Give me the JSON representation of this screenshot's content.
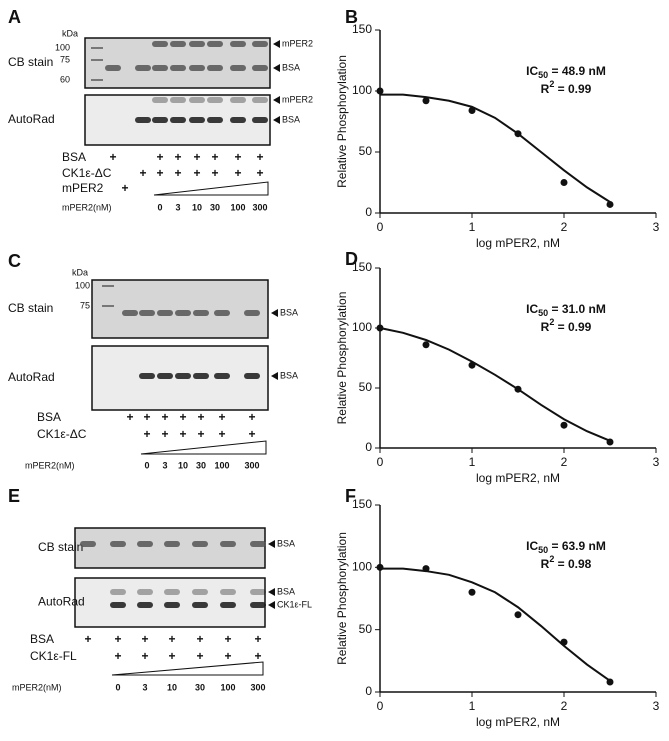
{
  "gels": [
    {
      "label": "A",
      "kda": "kDa",
      "markers": [
        100,
        75,
        60
      ],
      "blots": [
        {
          "name": "CB stain",
          "bands": [
            "mPER2",
            "BSA"
          ]
        },
        {
          "name": "AutoRad",
          "bands": [
            "mPER2",
            "BSA"
          ]
        }
      ],
      "conditions": [
        {
          "name": "BSA",
          "marks": [
            "+",
            null,
            null,
            "+",
            "+",
            "+",
            "+",
            "+",
            "+"
          ]
        },
        {
          "name": "CK1ε-ΔC",
          "marks": [
            null,
            null,
            "+",
            "+",
            "+",
            "+",
            "+",
            "+",
            "+"
          ]
        },
        {
          "name": "mPER2",
          "marks": [
            null,
            "+",
            null,
            null,
            null,
            null,
            null,
            null,
            null
          ]
        }
      ],
      "conc_label": "mPER2(nM)",
      "conc": [
        null,
        null,
        null,
        0,
        3,
        10,
        30,
        100,
        300
      ]
    },
    {
      "label": "C",
      "kda": "kDa",
      "markers": [
        100,
        75
      ],
      "blots": [
        {
          "name": "CB stain",
          "bands": [
            "BSA"
          ]
        },
        {
          "name": "AutoRad",
          "bands": [
            "BSA"
          ]
        }
      ],
      "conditions": [
        {
          "name": "BSA",
          "marks": [
            "+",
            "+",
            "+",
            "+",
            "+",
            "+",
            "+"
          ]
        },
        {
          "name": "CK1ε-ΔC",
          "marks": [
            null,
            "+",
            "+",
            "+",
            "+",
            "+",
            "+"
          ]
        }
      ],
      "conc_label": "mPER2(nM)",
      "conc": [
        null,
        0,
        3,
        10,
        30,
        100,
        300
      ]
    },
    {
      "label": "E",
      "blots": [
        {
          "name": "CB stain",
          "bands": [
            "BSA"
          ]
        },
        {
          "name": "AutoRad",
          "bands": [
            "BSA",
            "CK1ε-FL"
          ]
        }
      ],
      "conditions": [
        {
          "name": "BSA",
          "marks": [
            "+",
            "+",
            "+",
            "+",
            "+",
            "+",
            "+"
          ]
        },
        {
          "name": "CK1ε-FL",
          "marks": [
            null,
            "+",
            "+",
            "+",
            "+",
            "+",
            "+"
          ]
        }
      ],
      "conc_label": "mPER2(nM)",
      "conc": [
        null,
        0,
        3,
        10,
        30,
        100,
        300
      ]
    }
  ],
  "chart_data": [
    {
      "type": "scatter",
      "label": "B",
      "x_label": "log mPER2, nM",
      "y_label": "Relative Phosphorylation",
      "ic50": {
        "base": "IC",
        "sub": "50",
        "rest": " = 48.9 nM"
      },
      "r2": {
        "base": "R",
        "sup": "2",
        "rest": " = 0.99"
      },
      "xlim": [
        0,
        3
      ],
      "ylim": [
        0,
        150
      ],
      "xticks": [
        0,
        1,
        2,
        3
      ],
      "yticks": [
        0,
        50,
        100,
        150
      ],
      "series": [
        {
          "mode": "markers",
          "color": "#111111",
          "x": [
            0,
            0.5,
            1,
            1.5,
            2,
            2.5
          ],
          "values": [
            100,
            92,
            84,
            65,
            25,
            7
          ]
        },
        {
          "mode": "line",
          "color": "#111111",
          "x": [
            0,
            0.25,
            0.5,
            0.75,
            1,
            1.25,
            1.5,
            1.75,
            2,
            2.25,
            2.5
          ],
          "values": [
            97,
            97,
            95,
            92,
            87,
            78,
            65,
            50,
            35,
            21,
            9
          ]
        }
      ]
    },
    {
      "type": "scatter",
      "label": "D",
      "x_label": "log mPER2, nM",
      "y_label": "Relative Phosphorylation",
      "ic50": {
        "base": "IC",
        "sub": "50",
        "rest": " = 31.0 nM"
      },
      "r2": {
        "base": "R",
        "sup": "2",
        "rest": " = 0.99"
      },
      "xlim": [
        0,
        3
      ],
      "ylim": [
        0,
        150
      ],
      "xticks": [
        0,
        1,
        2,
        3
      ],
      "yticks": [
        0,
        50,
        100,
        150
      ],
      "series": [
        {
          "mode": "markers",
          "color": "#111111",
          "x": [
            0,
            0.5,
            1,
            1.5,
            2,
            2.5
          ],
          "values": [
            100,
            86,
            69,
            49,
            19,
            5
          ]
        },
        {
          "mode": "line",
          "color": "#111111",
          "x": [
            0,
            0.25,
            0.5,
            0.75,
            1,
            1.25,
            1.5,
            1.75,
            2,
            2.25,
            2.5
          ],
          "values": [
            100,
            96,
            90,
            82,
            72,
            61,
            49,
            36,
            24,
            14,
            6
          ]
        }
      ]
    },
    {
      "type": "scatter",
      "label": "F",
      "x_label": "log mPER2, nM",
      "y_label": "Relative Phosphorylation",
      "ic50": {
        "base": "IC",
        "sub": "50",
        "rest": " = 63.9 nM"
      },
      "r2": {
        "base": "R",
        "sup": "2",
        "rest": " = 0.98"
      },
      "xlim": [
        0,
        3
      ],
      "ylim": [
        0,
        150
      ],
      "xticks": [
        0,
        1,
        2,
        3
      ],
      "yticks": [
        0,
        50,
        100,
        150
      ],
      "series": [
        {
          "mode": "markers",
          "color": "#111111",
          "x": [
            0,
            0.5,
            1,
            1.5,
            2,
            2.5
          ],
          "values": [
            100,
            99,
            80,
            62,
            40,
            8
          ]
        },
        {
          "mode": "line",
          "color": "#111111",
          "x": [
            0,
            0.25,
            0.5,
            0.75,
            1,
            1.25,
            1.5,
            1.75,
            2,
            2.25,
            2.5
          ],
          "values": [
            99,
            99,
            97,
            94,
            88,
            80,
            68,
            53,
            37,
            22,
            9
          ]
        }
      ]
    }
  ]
}
